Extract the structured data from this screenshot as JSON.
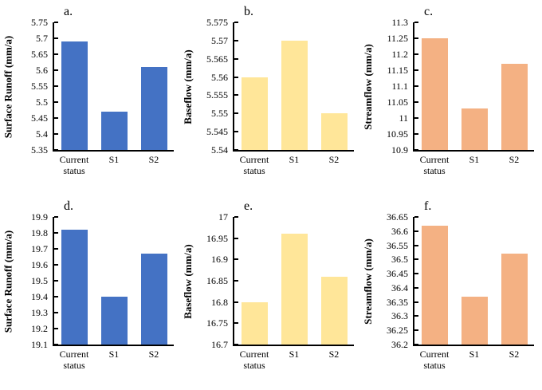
{
  "figure": {
    "background": "#ffffff",
    "axis_color": "#000000"
  },
  "chart_data": [
    {
      "id": "a",
      "type": "bar",
      "panel_label": "a.",
      "ylabel": "Surface Runoff (mm/a)",
      "xlabel": "",
      "categories": [
        "Current status",
        "S1",
        "S2"
      ],
      "values": [
        5.69,
        5.47,
        5.61
      ],
      "ylim": [
        5.35,
        5.75
      ],
      "yticks": [
        "5.35",
        "5.4",
        "5.45",
        "5.5",
        "5.55",
        "5.6",
        "5.65",
        "5.7",
        "5.75"
      ],
      "bar_color": "#4472C4",
      "grid": false,
      "legend": null
    },
    {
      "id": "b",
      "type": "bar",
      "panel_label": "b.",
      "ylabel": "Baseflow (mm/a)",
      "xlabel": "",
      "categories": [
        "Current status",
        "S1",
        "S2"
      ],
      "values": [
        5.56,
        5.57,
        5.55
      ],
      "ylim": [
        5.54,
        5.575
      ],
      "yticks": [
        "5.54",
        "5.545",
        "5.55",
        "5.555",
        "5.56",
        "5.565",
        "5.57",
        "5.575"
      ],
      "bar_color": "#FFE699",
      "grid": false,
      "legend": null
    },
    {
      "id": "c",
      "type": "bar",
      "panel_label": "c.",
      "ylabel": "Streamflow (mm/a)",
      "xlabel": "",
      "categories": [
        "Current status",
        "S1",
        "S2"
      ],
      "values": [
        11.25,
        11.03,
        11.17
      ],
      "ylim": [
        10.9,
        11.3
      ],
      "yticks": [
        "10.9",
        "10.95",
        "11",
        "11.05",
        "11.1",
        "11.15",
        "11.2",
        "11.25",
        "11.3"
      ],
      "bar_color": "#F4B183",
      "grid": false,
      "legend": null
    },
    {
      "id": "d",
      "type": "bar",
      "panel_label": "d.",
      "ylabel": "Surface Runoff (mm/a)",
      "xlabel": "",
      "categories": [
        "Current status",
        "S1",
        "S2"
      ],
      "values": [
        19.82,
        19.4,
        19.67
      ],
      "ylim": [
        19.1,
        19.9
      ],
      "yticks": [
        "19.1",
        "19.2",
        "19.3",
        "19.4",
        "19.5",
        "19.6",
        "19.7",
        "19.8",
        "19.9"
      ],
      "bar_color": "#4472C4",
      "grid": false,
      "legend": null
    },
    {
      "id": "e",
      "type": "bar",
      "panel_label": "e.",
      "ylabel": "Baseflow (mm/a)",
      "xlabel": "",
      "categories": [
        "Current status",
        "S1",
        "S2"
      ],
      "values": [
        16.8,
        16.96,
        16.86
      ],
      "ylim": [
        16.7,
        17
      ],
      "yticks": [
        "16.7",
        "16.75",
        "16.8",
        "16.85",
        "16.9",
        "16.95",
        "17"
      ],
      "bar_color": "#FFE699",
      "grid": false,
      "legend": null
    },
    {
      "id": "f",
      "type": "bar",
      "panel_label": "f.",
      "ylabel": "Streamflow (mm/a)",
      "xlabel": "",
      "categories": [
        "Current status",
        "S1",
        "S2"
      ],
      "values": [
        36.62,
        36.37,
        36.52
      ],
      "ylim": [
        36.2,
        36.65
      ],
      "yticks": [
        "36.2",
        "36.25",
        "36.3",
        "36.35",
        "36.4",
        "36.45",
        "36.5",
        "36.55",
        "36.6",
        "36.65"
      ],
      "bar_color": "#F4B183",
      "grid": false,
      "legend": null
    }
  ]
}
